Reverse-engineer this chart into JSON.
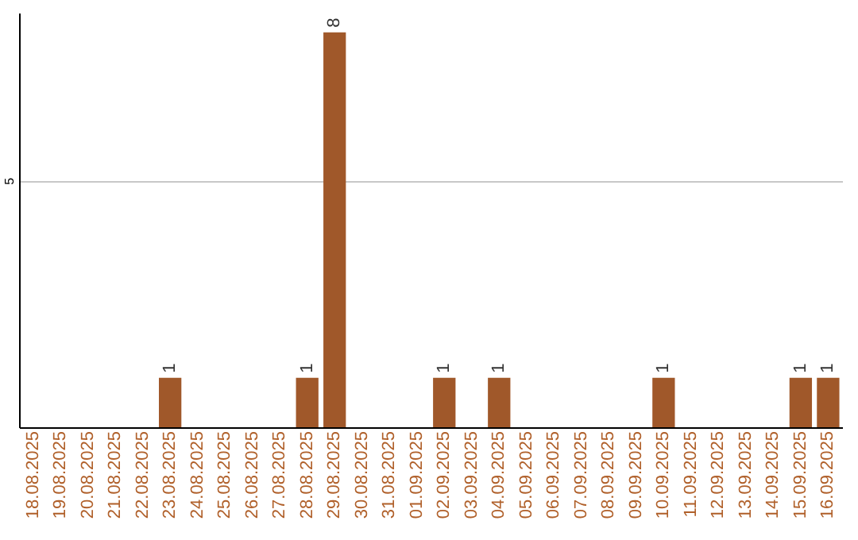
{
  "chart_data": {
    "type": "bar",
    "categories": [
      "18.08.2025",
      "19.08.2025",
      "20.08.2025",
      "21.08.2025",
      "22.08.2025",
      "23.08.2025",
      "24.08.2025",
      "25.08.2025",
      "26.08.2025",
      "27.08.2025",
      "28.08.2025",
      "29.08.2025",
      "30.08.2025",
      "31.08.2025",
      "01.09.2025",
      "02.09.2025",
      "03.09.2025",
      "04.09.2025",
      "05.09.2025",
      "06.09.2025",
      "07.09.2025",
      "08.09.2025",
      "09.09.2025",
      "10.09.2025",
      "11.09.2025",
      "12.09.2025",
      "13.09.2025",
      "14.09.2025",
      "15.09.2025",
      "16.09.2025"
    ],
    "values": [
      0,
      0,
      0,
      0,
      0,
      1,
      0,
      0,
      0,
      0,
      1,
      8,
      0,
      0,
      0,
      1,
      0,
      1,
      0,
      0,
      0,
      0,
      0,
      1,
      0,
      0,
      0,
      0,
      1,
      1
    ],
    "value_labels": [
      null,
      null,
      null,
      null,
      null,
      "1",
      null,
      null,
      null,
      null,
      "1",
      "8",
      null,
      null,
      null,
      "1",
      null,
      "1",
      null,
      null,
      null,
      null,
      null,
      "1",
      null,
      null,
      null,
      null,
      "1",
      "1"
    ],
    "color": "#a0582a",
    "ylim": [
      0,
      8.4
    ],
    "yticks": [
      5
    ],
    "grid": "y"
  }
}
